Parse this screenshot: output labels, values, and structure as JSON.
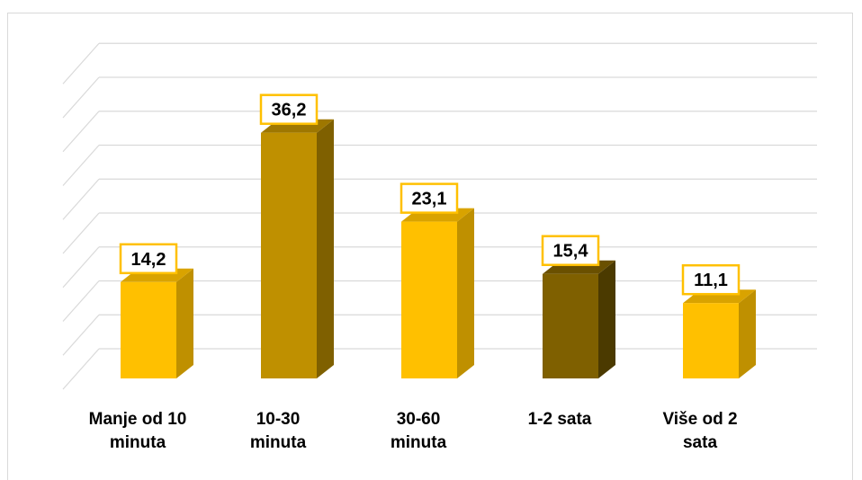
{
  "chart_data": {
    "type": "bar",
    "categories": [
      [
        "Manje od 10",
        "minuta"
      ],
      [
        "10-30",
        "minuta"
      ],
      [
        "30-60",
        "minuta"
      ],
      [
        "1-2 sata"
      ],
      [
        "Više od 2",
        "sata"
      ]
    ],
    "values": [
      14.2,
      36.2,
      23.1,
      15.4,
      11.1
    ],
    "value_labels": [
      "14,2",
      "36,2",
      "23,1",
      "15,4",
      "11,1"
    ],
    "bar_colors": [
      "#FFC000",
      "#BF9000",
      "#FFC000",
      "#7F6000",
      "#FFC000"
    ],
    "bar_side_colors": [
      "#BF9000",
      "#7F6000",
      "#BF9000",
      "#4B3A00",
      "#BF9000"
    ],
    "bar_top_colors": [
      "#D9A300",
      "#9E7700",
      "#D9A300",
      "#6A5000",
      "#D9A300"
    ],
    "label_border_color": "#FFC000",
    "gridline_color": "#D9D9D9",
    "ylim": [
      0,
      40
    ],
    "grid": true,
    "title": "",
    "xlabel": "",
    "ylabel": ""
  }
}
